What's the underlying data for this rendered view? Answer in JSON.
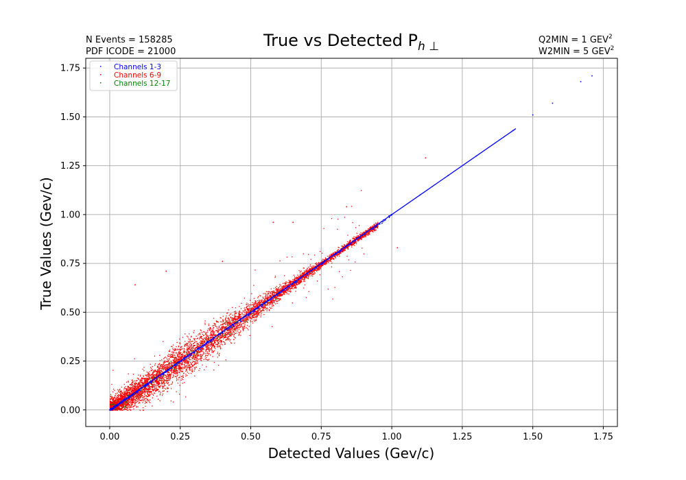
{
  "chart_data": {
    "type": "scatter",
    "title": "True vs Detected P",
    "title_subscript": "h ⊥",
    "xlabel": "Detected Values (Gev/c)",
    "ylabel": "True Values (Gev/c)",
    "xlim": [
      -0.085,
      1.8
    ],
    "ylim": [
      -0.085,
      1.8
    ],
    "xticks": [
      "0.00",
      "0.25",
      "0.50",
      "0.75",
      "1.00",
      "1.25",
      "1.50",
      "1.75"
    ],
    "yticks": [
      "0.00",
      "0.25",
      "0.50",
      "0.75",
      "1.00",
      "1.25",
      "1.50",
      "1.75"
    ],
    "grid": true,
    "legend_position": "top-left",
    "annotations": {
      "n_events": "N Events =  158285",
      "pdf_icode": "PDF ICODE = 21000",
      "q2min": "Q2MIN = 1 GEV",
      "q2min_sup": "2",
      "w2min": "W2MIN = 5 GEV",
      "w2min_sup": "2"
    },
    "series": [
      {
        "name": "Channels 1-3",
        "color": "#0000ff",
        "points": [
          [
            0.0,
            0.0
          ],
          [
            0.1,
            0.1
          ],
          [
            0.2,
            0.2
          ],
          [
            0.3,
            0.3
          ],
          [
            0.4,
            0.4
          ],
          [
            0.5,
            0.5
          ],
          [
            0.6,
            0.6
          ],
          [
            0.7,
            0.7
          ],
          [
            0.8,
            0.8
          ],
          [
            0.9,
            0.9
          ],
          [
            1.0,
            1.0
          ],
          [
            1.1,
            1.1
          ],
          [
            1.2,
            1.2
          ],
          [
            1.3,
            1.3
          ],
          [
            1.43,
            1.43
          ],
          [
            1.5,
            1.51
          ],
          [
            1.57,
            1.57
          ],
          [
            1.67,
            1.68
          ],
          [
            1.71,
            1.71
          ]
        ]
      },
      {
        "name": "Channels 6-9",
        "color": "#ff0000",
        "points": [
          [
            0.05,
            0.07
          ],
          [
            0.1,
            0.12
          ],
          [
            0.15,
            0.13
          ],
          [
            0.2,
            0.23
          ],
          [
            0.25,
            0.22
          ],
          [
            0.3,
            0.33
          ],
          [
            0.35,
            0.34
          ],
          [
            0.4,
            0.42
          ],
          [
            0.45,
            0.44
          ],
          [
            0.5,
            0.51
          ],
          [
            0.6,
            0.59
          ],
          [
            0.7,
            0.72
          ],
          [
            0.85,
            0.86
          ],
          [
            0.09,
            0.64
          ],
          [
            0.2,
            0.71
          ],
          [
            0.4,
            0.76
          ],
          [
            0.58,
            0.96
          ],
          [
            0.65,
            0.96
          ],
          [
            0.84,
            1.04
          ],
          [
            0.44,
            0.36
          ],
          [
            1.02,
            0.83
          ],
          [
            1.12,
            1.29
          ]
        ]
      },
      {
        "name": "Channels 12-17",
        "color": "#008000",
        "points": [
          [
            0.12,
            0.12
          ],
          [
            0.22,
            0.22
          ],
          [
            0.3,
            0.3
          ],
          [
            0.45,
            0.45
          ]
        ]
      }
    ]
  }
}
